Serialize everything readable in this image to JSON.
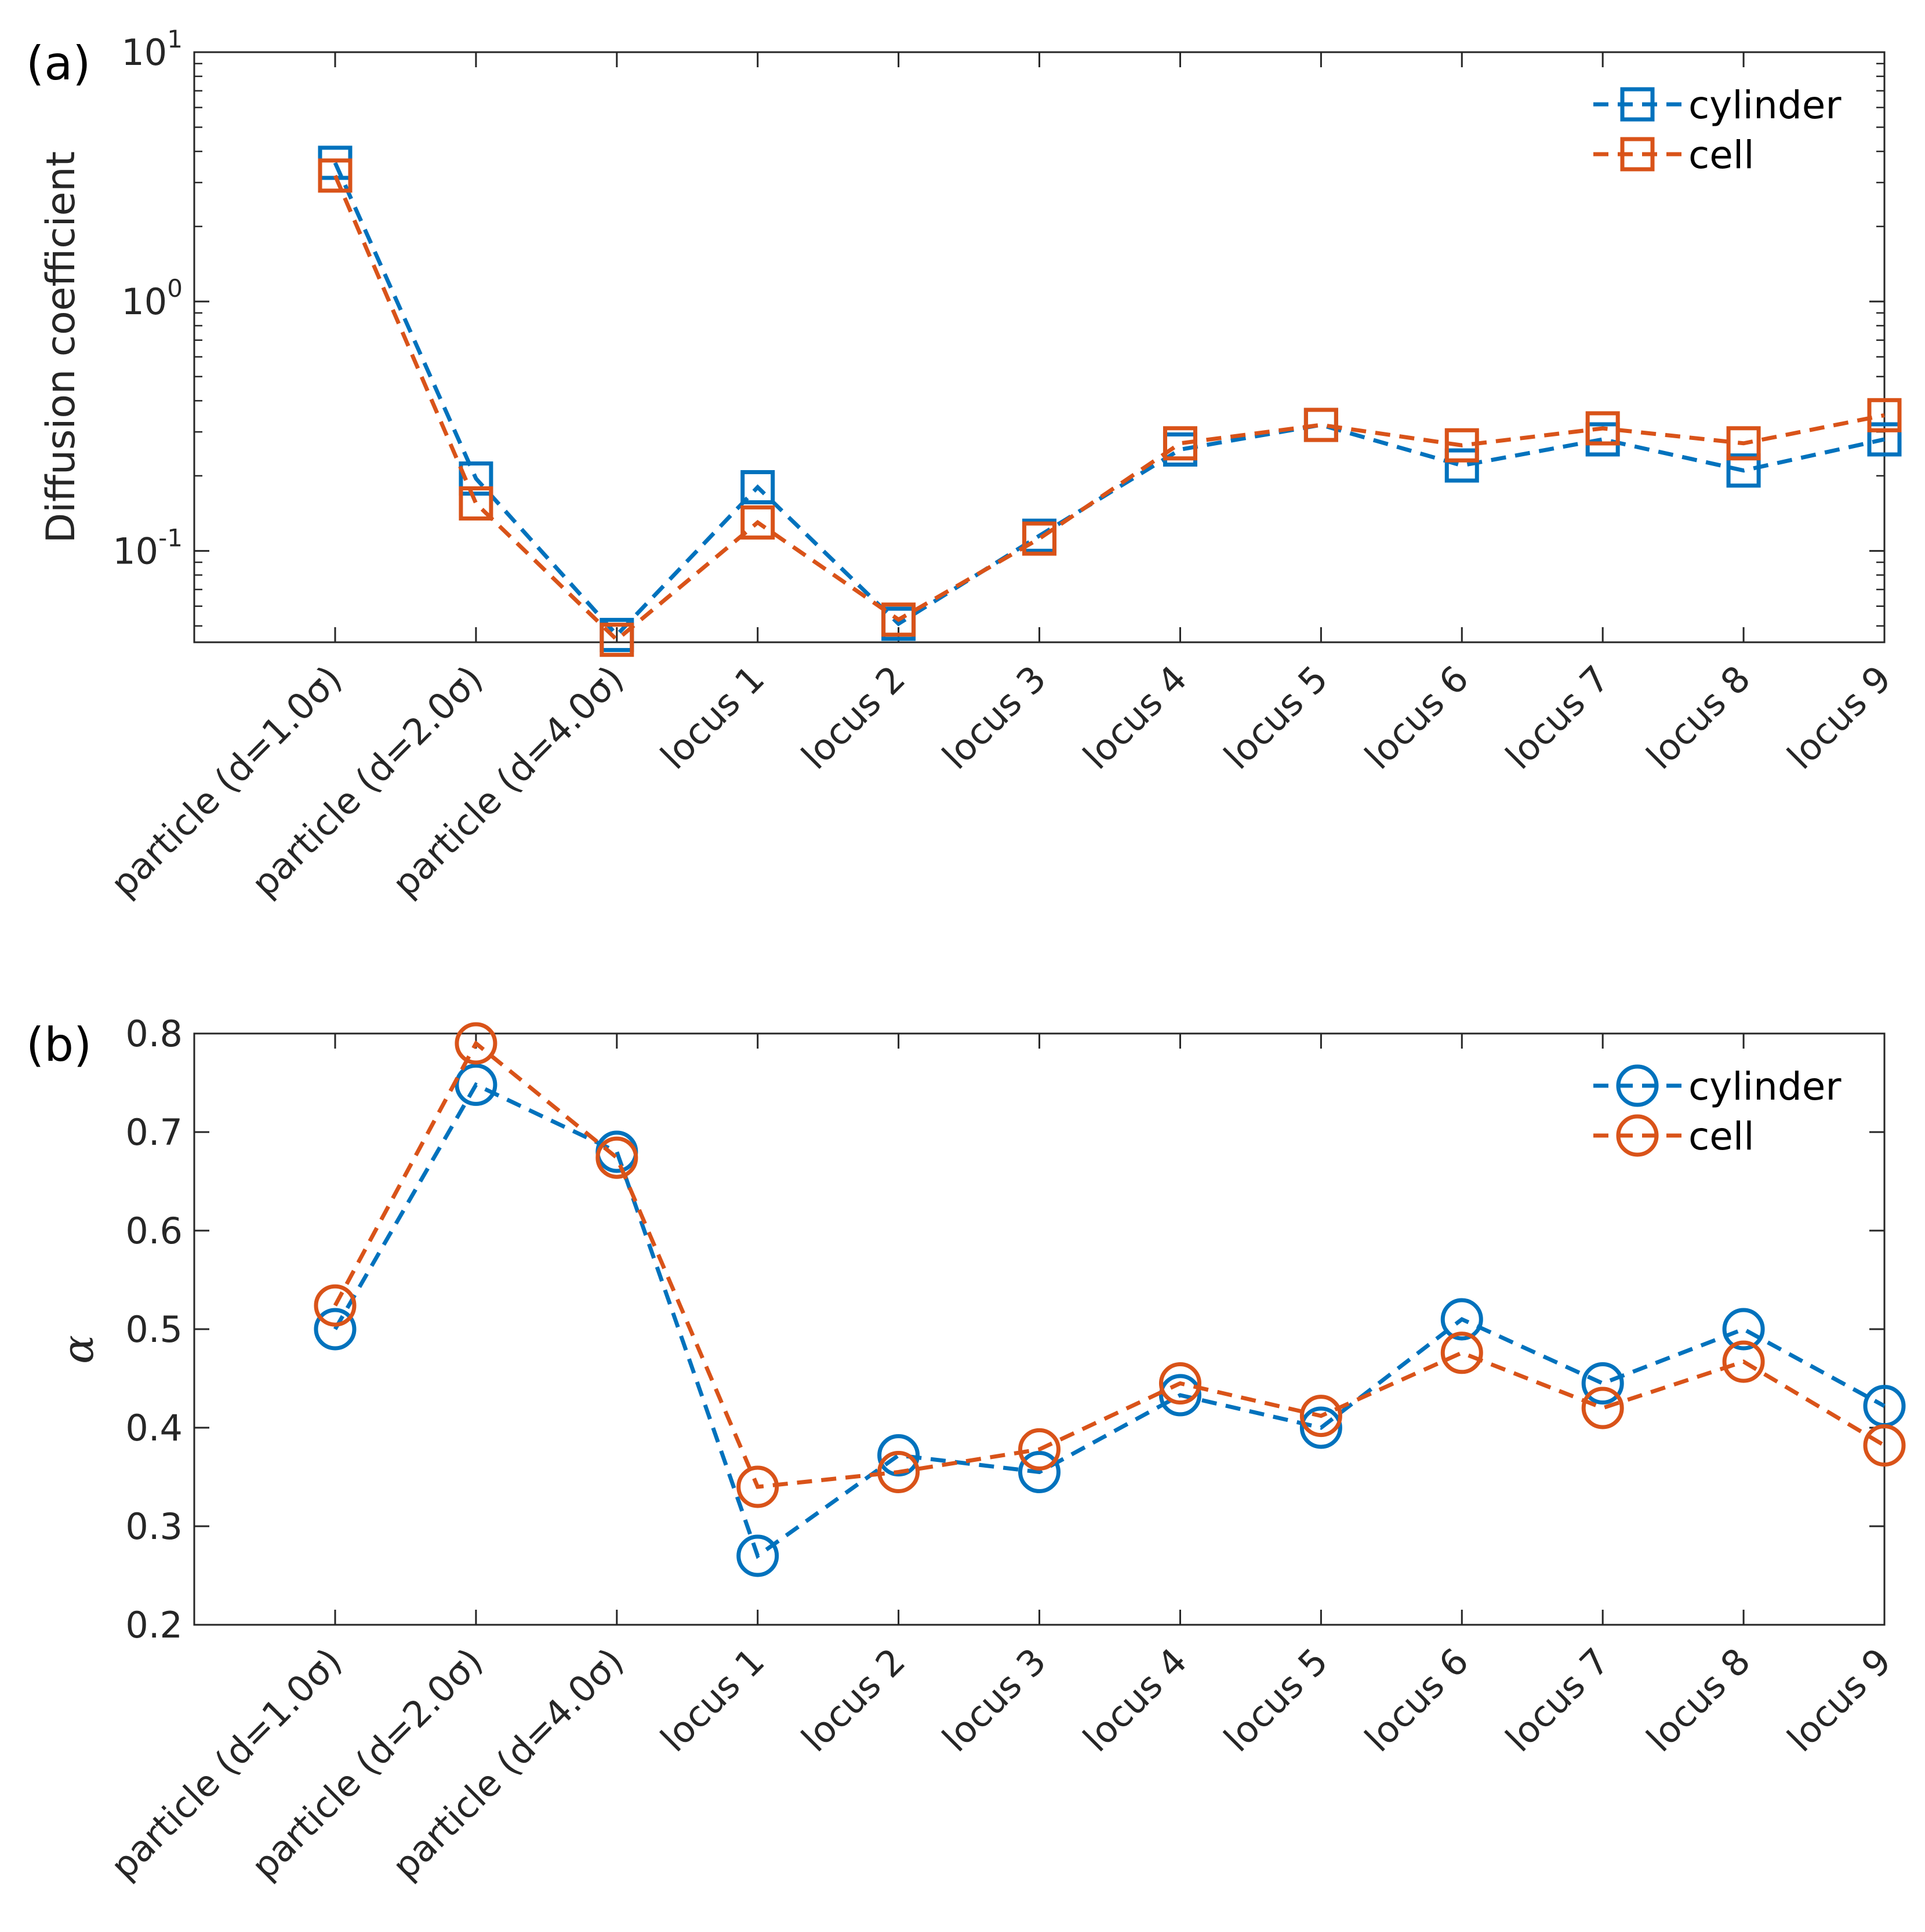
{
  "chart_data": [
    {
      "panel_label": "(a)",
      "type": "line",
      "scale": "log",
      "ylabel": "Diffusion coefficient",
      "ylim": [
        0.043,
        10
      ],
      "yticks": [
        {
          "value": 0.1,
          "base": "10",
          "exp": "-1"
        },
        {
          "value": 1,
          "base": "10",
          "exp": "0"
        },
        {
          "value": 10,
          "base": "10",
          "exp": "1"
        }
      ],
      "categories": [
        "particle (d=1.0σ)",
        "particle (d=2.0σ)",
        "particle (d=4.0σ)",
        "locus 1",
        "locus 2",
        "locus 3",
        "locus 4",
        "locus 5",
        "locus 6",
        "locus 7",
        "locus 8",
        "locus 9"
      ],
      "marker": "square",
      "series": [
        {
          "name": "cylinder",
          "color": "#0072BD",
          "values": [
            3.6,
            0.195,
            0.046,
            0.18,
            0.051,
            0.115,
            0.255,
            0.32,
            0.22,
            0.28,
            0.21,
            0.28
          ]
        },
        {
          "name": "cell",
          "color": "#D95319",
          "values": [
            3.2,
            0.155,
            0.044,
            0.13,
            0.053,
            0.112,
            0.27,
            0.32,
            0.265,
            0.31,
            0.27,
            0.35
          ]
        }
      ],
      "legend_position": "top-right"
    },
    {
      "panel_label": "(b)",
      "type": "line",
      "scale": "linear",
      "ylabel": "α",
      "ylim": [
        0.2,
        0.8
      ],
      "yticks": [
        {
          "value": 0.2,
          "label": "0.2"
        },
        {
          "value": 0.3,
          "label": "0.3"
        },
        {
          "value": 0.4,
          "label": "0.4"
        },
        {
          "value": 0.5,
          "label": "0.5"
        },
        {
          "value": 0.6,
          "label": "0.6"
        },
        {
          "value": 0.7,
          "label": "0.7"
        },
        {
          "value": 0.8,
          "label": "0.8"
        }
      ],
      "categories": [
        "particle (d=1.0σ)",
        "particle (d=2.0σ)",
        "particle (d=4.0σ)",
        "locus 1",
        "locus 2",
        "locus 3",
        "locus 4",
        "locus 5",
        "locus 6",
        "locus 7",
        "locus 8",
        "locus 9"
      ],
      "marker": "circle",
      "series": [
        {
          "name": "cylinder",
          "color": "#0072BD",
          "values": [
            0.5,
            0.748,
            0.68,
            0.27,
            0.372,
            0.355,
            0.433,
            0.4,
            0.51,
            0.445,
            0.5,
            0.422
          ]
        },
        {
          "name": "cell",
          "color": "#D95319",
          "values": [
            0.524,
            0.79,
            0.674,
            0.34,
            0.355,
            0.378,
            0.445,
            0.412,
            0.476,
            0.42,
            0.467,
            0.382
          ]
        }
      ],
      "legend_position": "top-right"
    }
  ]
}
